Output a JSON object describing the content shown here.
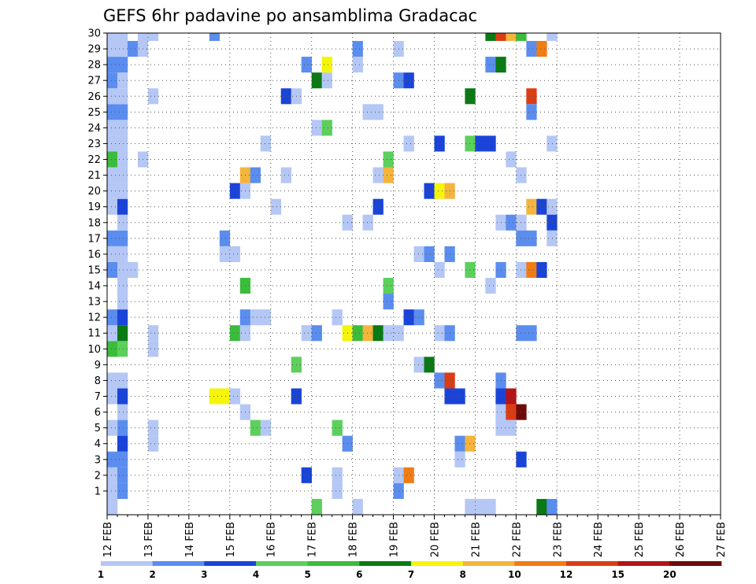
{
  "chart_data": {
    "type": "heatmap",
    "title": "GEFS 6hr padavine po ansamblima Gradacac",
    "xlabel": "",
    "ylabel": "",
    "x_tick_labels": [
      "12 FEB",
      "13 FEB",
      "14 FEB",
      "15 FEB",
      "16 FEB",
      "17 FEB",
      "18 FEB",
      "19 FEB",
      "20 FEB",
      "21 FEB",
      "22 FEB",
      "23 FEB",
      "24 FEB",
      "25 FEB",
      "26 FEB",
      "27 FEB"
    ],
    "y_tick_labels": [
      "1",
      "2",
      "3",
      "4",
      "5",
      "6",
      "7",
      "8",
      "9",
      "10",
      "11",
      "12",
      "13",
      "14",
      "15",
      "16",
      "17",
      "18",
      "19",
      "20",
      "21",
      "22",
      "23",
      "24",
      "25",
      "26",
      "27",
      "28",
      "29",
      "30"
    ],
    "x_range_days": [
      0,
      15
    ],
    "y_range": [
      0,
      30
    ],
    "steps_per_day": 4,
    "grid": "dotted",
    "colorbar": {
      "levels": [
        "1",
        "2",
        "3",
        "4",
        "5",
        "6",
        "7",
        "8",
        "10",
        "12",
        "15",
        "20"
      ],
      "colors": [
        "#b4c7f5",
        "#5b8def",
        "#1a44d8",
        "#5ccf5c",
        "#3cbc3c",
        "#0a7a14",
        "#f5f50a",
        "#f5b43c",
        "#f07c14",
        "#dc3c14",
        "#b41414",
        "#6e0a0a"
      ]
    },
    "cells": [
      {
        "x": 0,
        "y": 0,
        "c": 0
      },
      {
        "x": 0,
        "y": 1,
        "c": 0
      },
      {
        "x": 0,
        "y": 2,
        "c": 0
      },
      {
        "x": 0,
        "y": 3,
        "c": 1
      },
      {
        "x": 1,
        "y": 1,
        "c": 1
      },
      {
        "x": 1,
        "y": 2,
        "c": 1
      },
      {
        "x": 1,
        "y": 3,
        "c": 1
      },
      {
        "x": 1,
        "y": 5,
        "c": 1
      },
      {
        "x": 0,
        "y": 5,
        "c": 0
      },
      {
        "x": 1,
        "y": 6,
        "c": 0
      },
      {
        "x": 0,
        "y": 7,
        "c": 0
      },
      {
        "x": 1,
        "y": 7,
        "c": 2
      },
      {
        "x": 0,
        "y": 8,
        "c": 0
      },
      {
        "x": 1,
        "y": 8,
        "c": 0
      },
      {
        "x": 0,
        "y": 10,
        "c": 4
      },
      {
        "x": 1,
        "y": 10,
        "c": 3
      },
      {
        "x": 0,
        "y": 11,
        "c": 0
      },
      {
        "x": 1,
        "y": 11,
        "c": 5
      },
      {
        "x": 0,
        "y": 12,
        "c": 1
      },
      {
        "x": 1,
        "y": 12,
        "c": 2
      },
      {
        "x": 1,
        "y": 13,
        "c": 0
      },
      {
        "x": 1,
        "y": 14,
        "c": 0
      },
      {
        "x": 0,
        "y": 15,
        "c": 1
      },
      {
        "x": 1,
        "y": 15,
        "c": 0
      },
      {
        "x": 1,
        "y": 16,
        "c": 0
      },
      {
        "x": 0,
        "y": 17,
        "c": 1
      },
      {
        "x": 1,
        "y": 17,
        "c": 1
      },
      {
        "x": 1,
        "y": 18,
        "c": 0
      },
      {
        "x": 0,
        "y": 19,
        "c": 0
      },
      {
        "x": 1,
        "y": 19,
        "c": 2
      },
      {
        "x": 0,
        "y": 20,
        "c": 0
      },
      {
        "x": 1,
        "y": 20,
        "c": 0
      },
      {
        "x": 0,
        "y": 21,
        "c": 0
      },
      {
        "x": 1,
        "y": 21,
        "c": 0
      },
      {
        "x": 0,
        "y": 22,
        "c": 4
      },
      {
        "x": 1,
        "y": 22,
        "c": 0
      },
      {
        "x": 0,
        "y": 23,
        "c": 0
      },
      {
        "x": 1,
        "y": 23,
        "c": 0
      },
      {
        "x": 0,
        "y": 24,
        "c": 0
      },
      {
        "x": 0,
        "y": 25,
        "c": 1
      },
      {
        "x": 1,
        "y": 25,
        "c": 1
      },
      {
        "x": 0,
        "y": 26,
        "c": 0
      },
      {
        "x": 1,
        "y": 26,
        "c": 0
      },
      {
        "x": 0,
        "y": 27,
        "c": 1
      },
      {
        "x": 1,
        "y": 27,
        "c": 0
      },
      {
        "x": 0,
        "y": 28,
        "c": 1
      },
      {
        "x": 1,
        "y": 28,
        "c": 1
      },
      {
        "x": 0,
        "y": 29,
        "c": 0
      },
      {
        "x": 1,
        "y": 29,
        "c": 0
      },
      {
        "x": 0,
        "y": 30,
        "c": 0
      },
      {
        "x": 1,
        "y": 30,
        "c": 0
      },
      {
        "x": 1,
        "y": 24,
        "c": 0
      },
      {
        "x": 0,
        "y": 16,
        "c": 0
      },
      {
        "x": 0,
        "y": 26,
        "c": 0
      },
      {
        "x": 1,
        "y": 4,
        "c": 2
      },
      {
        "x": 2,
        "y": 29,
        "c": 1
      },
      {
        "x": 3,
        "y": 29,
        "c": 0
      },
      {
        "x": 3,
        "y": 22,
        "c": 0
      },
      {
        "x": 2,
        "y": 15,
        "c": 0
      },
      {
        "x": 3,
        "y": 30,
        "c": 0
      },
      {
        "x": 4,
        "y": 30,
        "c": 0
      },
      {
        "x": 4,
        "y": 26,
        "c": 0
      },
      {
        "x": 4,
        "y": 11,
        "c": 0
      },
      {
        "x": 4,
        "y": 10,
        "c": 0
      },
      {
        "x": 4,
        "y": 4,
        "c": 0
      },
      {
        "x": 4,
        "y": 5,
        "c": 0
      },
      {
        "x": 10,
        "y": 30,
        "c": 1
      },
      {
        "x": 10,
        "y": 7,
        "c": 6
      },
      {
        "x": 11,
        "y": 16,
        "c": 0
      },
      {
        "x": 12,
        "y": 16,
        "c": 0
      },
      {
        "x": 11,
        "y": 7,
        "c": 6
      },
      {
        "x": 12,
        "y": 7,
        "c": 0
      },
      {
        "x": 11,
        "y": 17,
        "c": 1
      },
      {
        "x": 12,
        "y": 20,
        "c": 2
      },
      {
        "x": 13,
        "y": 20,
        "c": 0
      },
      {
        "x": 13,
        "y": 14,
        "c": 4
      },
      {
        "x": 12,
        "y": 11,
        "c": 4
      },
      {
        "x": 13,
        "y": 11,
        "c": 0
      },
      {
        "x": 13,
        "y": 12,
        "c": 1
      },
      {
        "x": 14,
        "y": 12,
        "c": 0
      },
      {
        "x": 15,
        "y": 12,
        "c": 0
      },
      {
        "x": 13,
        "y": 6,
        "c": 0
      },
      {
        "x": 13,
        "y": 21,
        "c": 7
      },
      {
        "x": 14,
        "y": 21,
        "c": 1
      },
      {
        "x": 15,
        "y": 23,
        "c": 0
      },
      {
        "x": 14,
        "y": 5,
        "c": 3
      },
      {
        "x": 15,
        "y": 5,
        "c": 0
      },
      {
        "x": 16,
        "y": 19,
        "c": 0
      },
      {
        "x": 17,
        "y": 21,
        "c": 0
      },
      {
        "x": 17,
        "y": 26,
        "c": 2
      },
      {
        "x": 18,
        "y": 26,
        "c": 0
      },
      {
        "x": 18,
        "y": 7,
        "c": 2
      },
      {
        "x": 18,
        "y": 9,
        "c": 3
      },
      {
        "x": 19,
        "y": 28,
        "c": 1
      },
      {
        "x": 19,
        "y": 11,
        "c": 0
      },
      {
        "x": 20,
        "y": 11,
        "c": 1
      },
      {
        "x": 19,
        "y": 2,
        "c": 2
      },
      {
        "x": 20,
        "y": 24,
        "c": 0
      },
      {
        "x": 21,
        "y": 24,
        "c": 3
      },
      {
        "x": 20,
        "y": 0,
        "c": 3
      },
      {
        "x": 20,
        "y": 27,
        "c": 5
      },
      {
        "x": 21,
        "y": 27,
        "c": 0
      },
      {
        "x": 21,
        "y": 28,
        "c": 6
      },
      {
        "x": 22,
        "y": 12,
        "c": 0
      },
      {
        "x": 22,
        "y": 5,
        "c": 3
      },
      {
        "x": 22,
        "y": 1,
        "c": 0
      },
      {
        "x": 22,
        "y": 2,
        "c": 0
      },
      {
        "x": 23,
        "y": 11,
        "c": 6
      },
      {
        "x": 24,
        "y": 11,
        "c": 4
      },
      {
        "x": 25,
        "y": 11,
        "c": 7
      },
      {
        "x": 26,
        "y": 11,
        "c": 5
      },
      {
        "x": 23,
        "y": 4,
        "c": 1
      },
      {
        "x": 23,
        "y": 18,
        "c": 0
      },
      {
        "x": 24,
        "y": 29,
        "c": 1
      },
      {
        "x": 24,
        "y": 28,
        "c": 0
      },
      {
        "x": 24,
        "y": 0,
        "c": 0
      },
      {
        "x": 25,
        "y": 25,
        "c": 0
      },
      {
        "x": 26,
        "y": 25,
        "c": 0
      },
      {
        "x": 25,
        "y": 18,
        "c": 0
      },
      {
        "x": 26,
        "y": 19,
        "c": 2
      },
      {
        "x": 26,
        "y": 21,
        "c": 0
      },
      {
        "x": 27,
        "y": 21,
        "c": 7
      },
      {
        "x": 27,
        "y": 22,
        "c": 3
      },
      {
        "x": 27,
        "y": 14,
        "c": 3
      },
      {
        "x": 27,
        "y": 13,
        "c": 1
      },
      {
        "x": 27,
        "y": 11,
        "c": 0
      },
      {
        "x": 28,
        "y": 11,
        "c": 0
      },
      {
        "x": 28,
        "y": 29,
        "c": 0
      },
      {
        "x": 28,
        "y": 27,
        "c": 1
      },
      {
        "x": 29,
        "y": 27,
        "c": 2
      },
      {
        "x": 28,
        "y": 1,
        "c": 1
      },
      {
        "x": 28,
        "y": 2,
        "c": 0
      },
      {
        "x": 29,
        "y": 2,
        "c": 8
      },
      {
        "x": 29,
        "y": 23,
        "c": 0
      },
      {
        "x": 29,
        "y": 12,
        "c": 2
      },
      {
        "x": 30,
        "y": 12,
        "c": 1
      },
      {
        "x": 30,
        "y": 16,
        "c": 0
      },
      {
        "x": 31,
        "y": 16,
        "c": 1
      },
      {
        "x": 30,
        "y": 9,
        "c": 0
      },
      {
        "x": 31,
        "y": 9,
        "c": 5
      },
      {
        "x": 31,
        "y": 20,
        "c": 2
      },
      {
        "x": 32,
        "y": 20,
        "c": 6
      },
      {
        "x": 33,
        "y": 20,
        "c": 7
      },
      {
        "x": 32,
        "y": 15,
        "c": 0
      },
      {
        "x": 32,
        "y": 11,
        "c": 0
      },
      {
        "x": 33,
        "y": 11,
        "c": 1
      },
      {
        "x": 33,
        "y": 16,
        "c": 1
      },
      {
        "x": 32,
        "y": 23,
        "c": 2
      },
      {
        "x": 32,
        "y": 8,
        "c": 1
      },
      {
        "x": 33,
        "y": 8,
        "c": 9
      },
      {
        "x": 33,
        "y": 7,
        "c": 2
      },
      {
        "x": 34,
        "y": 7,
        "c": 2
      },
      {
        "x": 34,
        "y": 4,
        "c": 1
      },
      {
        "x": 35,
        "y": 4,
        "c": 7
      },
      {
        "x": 34,
        "y": 3,
        "c": 0
      },
      {
        "x": 35,
        "y": 15,
        "c": 3
      },
      {
        "x": 35,
        "y": 26,
        "c": 5
      },
      {
        "x": 35,
        "y": 0,
        "c": 0
      },
      {
        "x": 36,
        "y": 0,
        "c": 0
      },
      {
        "x": 37,
        "y": 0,
        "c": 0
      },
      {
        "x": 35,
        "y": 23,
        "c": 3
      },
      {
        "x": 36,
        "y": 23,
        "c": 2
      },
      {
        "x": 37,
        "y": 23,
        "c": 2
      },
      {
        "x": 37,
        "y": 30,
        "c": 5
      },
      {
        "x": 38,
        "y": 30,
        "c": 9
      },
      {
        "x": 39,
        "y": 30,
        "c": 7
      },
      {
        "x": 40,
        "y": 30,
        "c": 4
      },
      {
        "x": 37,
        "y": 28,
        "c": 1
      },
      {
        "x": 38,
        "y": 28,
        "c": 5
      },
      {
        "x": 37,
        "y": 14,
        "c": 0
      },
      {
        "x": 38,
        "y": 15,
        "c": 1
      },
      {
        "x": 38,
        "y": 6,
        "c": 0
      },
      {
        "x": 38,
        "y": 7,
        "c": 2
      },
      {
        "x": 38,
        "y": 8,
        "c": 1
      },
      {
        "x": 39,
        "y": 7,
        "c": 10
      },
      {
        "x": 39,
        "y": 6,
        "c": 9
      },
      {
        "x": 40,
        "y": 6,
        "c": 11
      },
      {
        "x": 38,
        "y": 5,
        "c": 0
      },
      {
        "x": 39,
        "y": 5,
        "c": 0
      },
      {
        "x": 38,
        "y": 18,
        "c": 0
      },
      {
        "x": 39,
        "y": 18,
        "c": 1
      },
      {
        "x": 40,
        "y": 18,
        "c": 0
      },
      {
        "x": 39,
        "y": 22,
        "c": 0
      },
      {
        "x": 40,
        "y": 21,
        "c": 0
      },
      {
        "x": 40,
        "y": 15,
        "c": 0
      },
      {
        "x": 41,
        "y": 15,
        "c": 8
      },
      {
        "x": 42,
        "y": 15,
        "c": 2
      },
      {
        "x": 40,
        "y": 11,
        "c": 1
      },
      {
        "x": 41,
        "y": 11,
        "c": 1
      },
      {
        "x": 40,
        "y": 17,
        "c": 1
      },
      {
        "x": 41,
        "y": 17,
        "c": 1
      },
      {
        "x": 40,
        "y": 3,
        "c": 2
      },
      {
        "x": 41,
        "y": 19,
        "c": 7
      },
      {
        "x": 42,
        "y": 19,
        "c": 2
      },
      {
        "x": 43,
        "y": 19,
        "c": 0
      },
      {
        "x": 41,
        "y": 26,
        "c": 9
      },
      {
        "x": 41,
        "y": 25,
        "c": 1
      },
      {
        "x": 41,
        "y": 29,
        "c": 1
      },
      {
        "x": 42,
        "y": 29,
        "c": 8
      },
      {
        "x": 42,
        "y": 0,
        "c": 5
      },
      {
        "x": 43,
        "y": 0,
        "c": 1
      },
      {
        "x": 43,
        "y": 18,
        "c": 2
      },
      {
        "x": 43,
        "y": 17,
        "c": 0
      },
      {
        "x": 43,
        "y": 23,
        "c": 0
      },
      {
        "x": 43,
        "y": 30,
        "c": 0
      }
    ]
  }
}
